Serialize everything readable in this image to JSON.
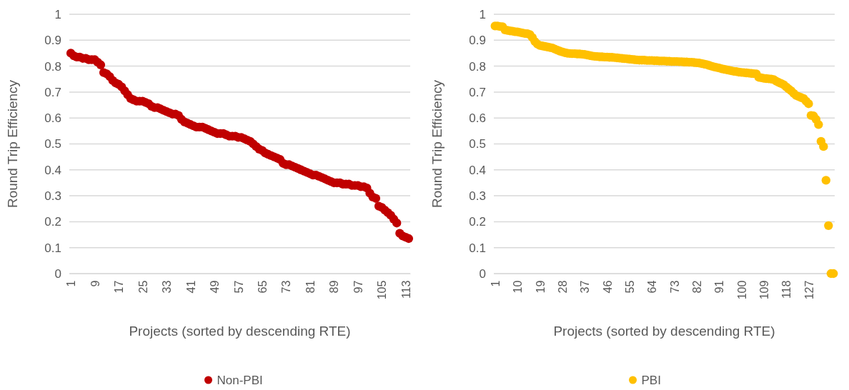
{
  "chart_data": [
    {
      "type": "scatter",
      "xlabel": "Projects (sorted by descending RTE)",
      "ylabel": "Round Trip Efficiency",
      "xlim": [
        0.5,
        114.5
      ],
      "xticks": [
        1,
        9,
        17,
        25,
        33,
        41,
        49,
        57,
        65,
        73,
        81,
        89,
        97,
        105,
        113
      ],
      "ylim": [
        0,
        1
      ],
      "yticks": [
        0,
        0.1,
        0.2,
        0.3,
        0.4,
        0.5,
        0.6,
        0.7,
        0.8,
        0.9,
        1
      ],
      "grid": "y",
      "legend": "bottom",
      "marker": "circle",
      "series": [
        {
          "name": "Non-PBI",
          "color": "#c00000",
          "x": [
            1,
            2,
            3,
            4,
            5,
            6,
            7,
            8,
            9,
            10,
            11,
            12,
            13,
            14,
            15,
            16,
            17,
            18,
            19,
            20,
            21,
            22,
            23,
            24,
            25,
            26,
            27,
            28,
            29,
            30,
            31,
            32,
            33,
            34,
            35,
            36,
            37,
            38,
            39,
            40,
            41,
            42,
            43,
            44,
            45,
            46,
            47,
            48,
            49,
            50,
            51,
            52,
            53,
            54,
            55,
            56,
            57,
            58,
            59,
            60,
            61,
            62,
            63,
            64,
            65,
            66,
            67,
            68,
            69,
            70,
            71,
            72,
            73,
            74,
            75,
            76,
            77,
            78,
            79,
            80,
            81,
            82,
            83,
            84,
            85,
            86,
            87,
            88,
            89,
            90,
            91,
            92,
            93,
            94,
            95,
            96,
            97,
            98,
            99,
            100,
            101,
            102,
            103,
            104,
            105,
            106,
            107,
            108,
            109,
            110,
            111,
            112,
            113,
            114
          ],
          "values": [
            0.85,
            0.84,
            0.835,
            0.835,
            0.83,
            0.83,
            0.825,
            0.825,
            0.825,
            0.815,
            0.805,
            0.775,
            0.77,
            0.76,
            0.745,
            0.735,
            0.73,
            0.72,
            0.705,
            0.69,
            0.675,
            0.67,
            0.665,
            0.665,
            0.665,
            0.66,
            0.655,
            0.645,
            0.64,
            0.64,
            0.635,
            0.63,
            0.625,
            0.62,
            0.615,
            0.615,
            0.61,
            0.595,
            0.585,
            0.58,
            0.575,
            0.57,
            0.565,
            0.565,
            0.565,
            0.56,
            0.555,
            0.55,
            0.545,
            0.54,
            0.54,
            0.54,
            0.535,
            0.53,
            0.53,
            0.53,
            0.525,
            0.525,
            0.52,
            0.515,
            0.51,
            0.5,
            0.49,
            0.48,
            0.475,
            0.465,
            0.46,
            0.455,
            0.45,
            0.445,
            0.44,
            0.425,
            0.42,
            0.42,
            0.415,
            0.41,
            0.405,
            0.4,
            0.395,
            0.39,
            0.385,
            0.38,
            0.38,
            0.375,
            0.37,
            0.365,
            0.36,
            0.355,
            0.35,
            0.35,
            0.35,
            0.345,
            0.345,
            0.345,
            0.34,
            0.34,
            0.34,
            0.335,
            0.335,
            0.33,
            0.31,
            0.295,
            0.29,
            0.26,
            0.255,
            0.245,
            0.235,
            0.225,
            0.21,
            0.195,
            0.155,
            0.145,
            0.14,
            0.135
          ]
        }
      ]
    },
    {
      "type": "scatter",
      "xlabel": "Projects (sorted by descending RTE)",
      "ylabel": "Round Trip Efficiency",
      "xlim": [
        0.5,
        137.5
      ],
      "xticks": [
        1,
        10,
        19,
        28,
        37,
        46,
        55,
        64,
        73,
        82,
        91,
        100,
        109,
        118,
        127
      ],
      "ylim": [
        0,
        1
      ],
      "yticks": [
        0,
        0.1,
        0.2,
        0.3,
        0.4,
        0.5,
        0.6,
        0.7,
        0.8,
        0.9,
        1
      ],
      "grid": "y",
      "legend": "bottom",
      "marker": "circle",
      "series": [
        {
          "name": "PBI",
          "color": "#ffc000",
          "x": [
            1,
            2,
            3,
            4,
            5,
            6,
            7,
            8,
            9,
            10,
            11,
            12,
            13,
            14,
            15,
            16,
            17,
            18,
            19,
            20,
            21,
            22,
            23,
            24,
            25,
            26,
            27,
            28,
            29,
            30,
            31,
            32,
            33,
            34,
            35,
            36,
            37,
            38,
            39,
            40,
            41,
            42,
            43,
            44,
            45,
            46,
            47,
            48,
            49,
            50,
            51,
            52,
            53,
            54,
            55,
            56,
            57,
            58,
            59,
            60,
            61,
            62,
            63,
            64,
            65,
            66,
            67,
            68,
            69,
            70,
            71,
            72,
            73,
            74,
            75,
            76,
            77,
            78,
            79,
            80,
            81,
            82,
            83,
            84,
            85,
            86,
            87,
            88,
            89,
            90,
            91,
            92,
            93,
            94,
            95,
            96,
            97,
            98,
            99,
            100,
            101,
            102,
            103,
            104,
            105,
            106,
            107,
            108,
            109,
            110,
            111,
            112,
            113,
            114,
            115,
            116,
            117,
            118,
            119,
            120,
            121,
            122,
            123,
            124,
            125,
            126,
            127,
            128,
            129,
            130,
            131,
            132,
            133,
            134,
            135,
            136,
            137
          ],
          "values": [
            0.955,
            0.955,
            0.953,
            0.952,
            0.94,
            0.938,
            0.936,
            0.935,
            0.933,
            0.932,
            0.93,
            0.928,
            0.926,
            0.925,
            0.922,
            0.91,
            0.895,
            0.885,
            0.88,
            0.878,
            0.876,
            0.874,
            0.872,
            0.87,
            0.866,
            0.862,
            0.858,
            0.855,
            0.852,
            0.85,
            0.849,
            0.848,
            0.848,
            0.847,
            0.847,
            0.846,
            0.845,
            0.843,
            0.841,
            0.839,
            0.838,
            0.837,
            0.836,
            0.836,
            0.835,
            0.835,
            0.834,
            0.834,
            0.833,
            0.832,
            0.831,
            0.83,
            0.829,
            0.828,
            0.827,
            0.826,
            0.825,
            0.824,
            0.823,
            0.823,
            0.823,
            0.822,
            0.822,
            0.822,
            0.821,
            0.821,
            0.82,
            0.82,
            0.82,
            0.819,
            0.819,
            0.818,
            0.818,
            0.818,
            0.817,
            0.817,
            0.816,
            0.816,
            0.815,
            0.815,
            0.814,
            0.813,
            0.812,
            0.81,
            0.808,
            0.806,
            0.803,
            0.8,
            0.797,
            0.795,
            0.793,
            0.79,
            0.788,
            0.786,
            0.784,
            0.782,
            0.78,
            0.779,
            0.777,
            0.776,
            0.775,
            0.774,
            0.773,
            0.772,
            0.771,
            0.77,
            0.757,
            0.755,
            0.753,
            0.752,
            0.751,
            0.75,
            0.748,
            0.742,
            0.737,
            0.733,
            0.728,
            0.72,
            0.712,
            0.705,
            0.695,
            0.687,
            0.683,
            0.679,
            0.675,
            0.665,
            0.655,
            0.61,
            0.608,
            0.595,
            0.575,
            0.51,
            0.49,
            0.36,
            0.185,
            0,
            0
          ]
        }
      ]
    }
  ]
}
